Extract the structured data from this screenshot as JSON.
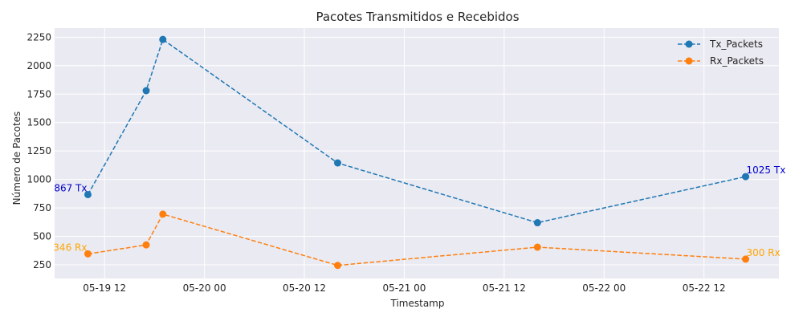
{
  "chart_data": {
    "type": "line",
    "title": "Pacotes Transmitidos e Recebidos",
    "xlabel": "Timestamp",
    "ylabel": "Número de Pacotes",
    "grid": true,
    "legend_position": "top-right",
    "x_tick_labels": [
      "05-19 12",
      "05-20 00",
      "05-20 12",
      "05-21 00",
      "05-21 12",
      "05-22 00",
      "05-22 12"
    ],
    "y_ticks": [
      250,
      500,
      750,
      1000,
      1250,
      1500,
      1750,
      2000,
      2250
    ],
    "xlim": [
      "2024-05-19 06:00",
      "2024-05-22 21:00"
    ],
    "ylim": [
      130,
      2330
    ],
    "x": [
      "2024-05-19 10:00",
      "2024-05-19 17:00",
      "2024-05-19 19:00",
      "2024-05-20 16:00",
      "2024-05-21 16:00",
      "2024-05-22 17:00"
    ],
    "series": [
      {
        "name": "Tx_Packets",
        "color": "#1f77b4",
        "values": [
          867,
          1780,
          2230,
          1145,
          620,
          1025
        ]
      },
      {
        "name": "Rx_Packets",
        "color": "#ff7f0e",
        "values": [
          346,
          425,
          695,
          245,
          405,
          300
        ]
      }
    ],
    "annotations": [
      {
        "text": "867 Tx",
        "x": "2024-05-19 10:00",
        "y": 867,
        "color": "#0000cc",
        "anchor": "end"
      },
      {
        "text": "346 Rx",
        "x": "2024-05-19 10:00",
        "y": 346,
        "color": "#ffa500",
        "anchor": "end"
      },
      {
        "text": "1025 Tx",
        "x": "2024-05-22 17:00",
        "y": 1025,
        "color": "#0000cc",
        "anchor": "start"
      },
      {
        "text": "300 Rx",
        "x": "2024-05-22 17:00",
        "y": 300,
        "color": "#ffa500",
        "anchor": "start"
      }
    ]
  }
}
